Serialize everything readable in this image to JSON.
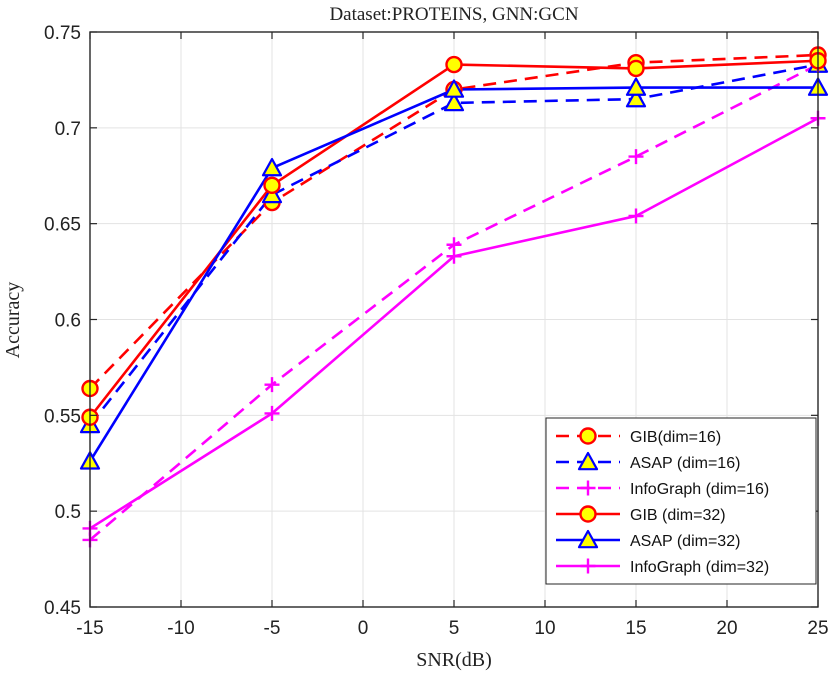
{
  "chart_data": {
    "type": "line",
    "title": "Dataset:PROTEINS, GNN:GCN",
    "xlabel": "SNR(dB)",
    "ylabel": "Accuracy",
    "xlim": [
      -15,
      25
    ],
    "ylim": [
      0.45,
      0.75
    ],
    "xticks": [
      -15,
      -10,
      -5,
      0,
      5,
      10,
      15,
      20,
      25
    ],
    "yticks": [
      0.45,
      0.5,
      0.55,
      0.6,
      0.65,
      0.7,
      0.75
    ],
    "xtick_labels": [
      "-15",
      "-10",
      "-5",
      "0",
      "5",
      "10",
      "15",
      "20",
      "25"
    ],
    "ytick_labels": [
      "0.45",
      "0.5",
      "0.55",
      "0.6",
      "0.65",
      "0.7",
      "0.75"
    ],
    "grid": true,
    "legend_position": "bottom-right",
    "x": [
      -15,
      -5,
      5,
      15,
      25
    ],
    "series": [
      {
        "name": "GIB(dim=16)",
        "values": [
          0.564,
          0.661,
          0.72,
          0.734,
          0.738
        ],
        "color": "#ff0000",
        "line_style": "dashed",
        "marker": "circle",
        "marker_fill": "#ffff00"
      },
      {
        "name": "ASAP (dim=16)",
        "values": [
          0.545,
          0.665,
          0.713,
          0.715,
          0.733
        ],
        "color": "#0000ff",
        "line_style": "dashed",
        "marker": "triangle",
        "marker_fill": "#ffff00"
      },
      {
        "name": "InfoGraph (dim=16)",
        "values": [
          0.485,
          0.566,
          0.639,
          0.685,
          0.733
        ],
        "color": "#ff00ff",
        "line_style": "dashed",
        "marker": "plus",
        "marker_fill": "none"
      },
      {
        "name": "GIB (dim=32)",
        "values": [
          0.549,
          0.67,
          0.733,
          0.731,
          0.735
        ],
        "color": "#ff0000",
        "line_style": "solid",
        "marker": "circle",
        "marker_fill": "#ffff00"
      },
      {
        "name": "ASAP (dim=32)",
        "values": [
          0.526,
          0.679,
          0.72,
          0.721,
          0.721
        ],
        "color": "#0000ff",
        "line_style": "solid",
        "marker": "triangle",
        "marker_fill": "#ffff00"
      },
      {
        "name": "InfoGraph (dim=32)",
        "values": [
          0.491,
          0.551,
          0.633,
          0.654,
          0.705
        ],
        "color": "#ff00ff",
        "line_style": "solid",
        "marker": "plus",
        "marker_fill": "none"
      }
    ]
  }
}
